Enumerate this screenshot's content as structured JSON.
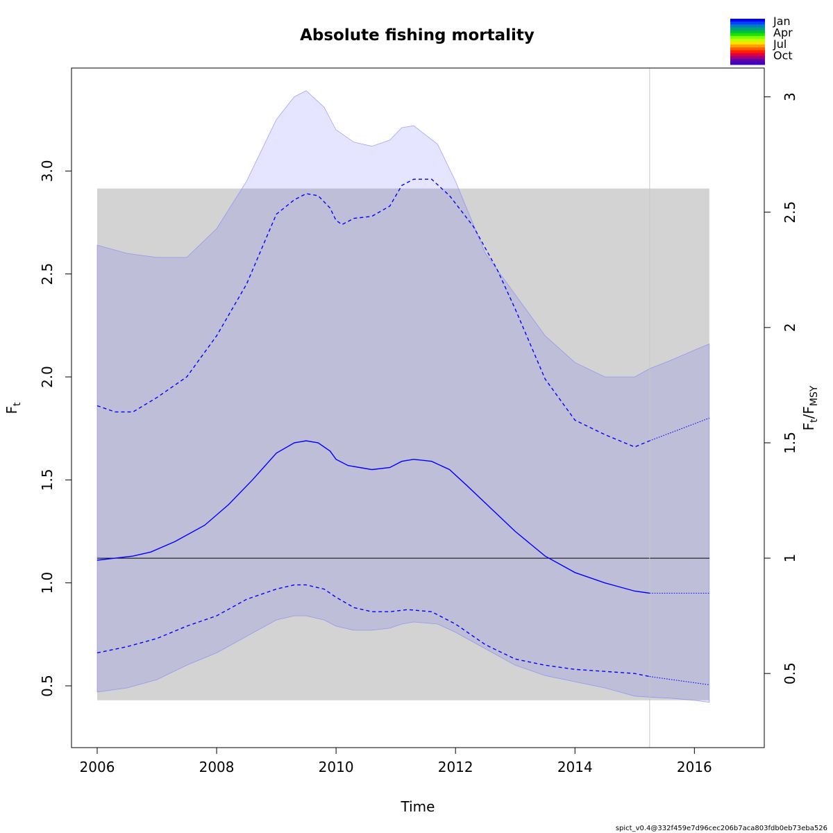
{
  "chart_data": {
    "type": "line",
    "title": "Absolute fishing mortality",
    "xlabel": "Time",
    "ylabel": "F",
    "ylabel_sub": "t",
    "y2label": {
      "F": "F",
      "sub1": "t",
      "slash": "/F",
      "sub2": "MSY"
    },
    "xlim": [
      2005.57,
      2017.17
    ],
    "ylim": [
      0.2,
      3.5
    ],
    "y2_scale": 1.12,
    "x_ticks": [
      2006,
      2008,
      2010,
      2012,
      2014,
      2016
    ],
    "x_tick_labels": [
      "2006",
      "2008",
      "2010",
      "2012",
      "2014",
      "2016"
    ],
    "y_ticks": [
      0.5,
      1.0,
      1.5,
      2.0,
      2.5,
      3.0
    ],
    "y_tick_labels": [
      "0.5",
      "1.0",
      "1.5",
      "2.0",
      "2.5",
      "3.0"
    ],
    "y2_ticks": [
      0.5,
      1,
      1.5,
      2,
      2.5,
      3
    ],
    "y2_tick_labels": [
      "0.5",
      "1",
      "1.5",
      "2",
      "2.5",
      "3"
    ],
    "fmsy_band": {
      "x": [
        2006,
        2016.25
      ],
      "y": [
        0.43,
        2.915
      ],
      "color": "#d3d3d3"
    },
    "fmsy_value": 1.12,
    "last_obs_x": 2015.25,
    "outer_ci": {
      "color": "#d8d8f5",
      "x": [
        2006,
        2006.5,
        2007,
        2007.5,
        2008,
        2008.5,
        2009,
        2009.3,
        2009.5,
        2009.8,
        2010,
        2010.3,
        2010.6,
        2010.9,
        2011.1,
        2011.3,
        2011.7,
        2012,
        2012.5,
        2013,
        2013.5,
        2014,
        2014.5,
        2015,
        2015.25,
        2015.6,
        2016,
        2016.25
      ],
      "upper": [
        2.64,
        2.6,
        2.58,
        2.58,
        2.72,
        2.95,
        3.25,
        3.36,
        3.39,
        3.31,
        3.2,
        3.14,
        3.12,
        3.15,
        3.21,
        3.22,
        3.13,
        2.95,
        2.6,
        2.4,
        2.2,
        2.07,
        2.0,
        2.0,
        2.04,
        2.08,
        2.13,
        2.16
      ],
      "lower": [
        0.47,
        0.49,
        0.53,
        0.6,
        0.66,
        0.74,
        0.82,
        0.84,
        0.84,
        0.82,
        0.79,
        0.77,
        0.77,
        0.78,
        0.8,
        0.81,
        0.8,
        0.76,
        0.68,
        0.6,
        0.55,
        0.52,
        0.49,
        0.45,
        0.445,
        0.44,
        0.43,
        0.42
      ]
    },
    "series": [
      {
        "name": "",
        "color": "#0000ff",
        "dash": "solid",
        "x": [
          2006,
          2006.3,
          2006.6,
          2006.9,
          2007.3,
          2007.8,
          2008.2,
          2008.6,
          2009,
          2009.3,
          2009.5,
          2009.7,
          2009.9,
          2010,
          2010.2,
          2010.6,
          2010.9,
          2011.1,
          2011.3,
          2011.6,
          2011.9,
          2012.2,
          2012.6,
          2013,
          2013.5,
          2014,
          2014.5,
          2015,
          2015.25
        ],
        "y": [
          1.11,
          1.12,
          1.13,
          1.15,
          1.2,
          1.28,
          1.38,
          1.5,
          1.63,
          1.68,
          1.69,
          1.68,
          1.64,
          1.6,
          1.57,
          1.55,
          1.56,
          1.59,
          1.6,
          1.59,
          1.55,
          1.47,
          1.36,
          1.25,
          1.13,
          1.05,
          1.0,
          0.96,
          0.95
        ]
      },
      {
        "name": "",
        "color": "#0000ff",
        "dash": "dotted",
        "x": [
          2015.25,
          2016.25
        ],
        "y": [
          0.95,
          0.95
        ]
      },
      {
        "name": "",
        "color": "#0000ff",
        "dash": "dashed",
        "x": [
          2006,
          2006.3,
          2006.6,
          2007,
          2007.5,
          2008,
          2008.5,
          2009,
          2009.3,
          2009.5,
          2009.7,
          2009.9,
          2010,
          2010.1,
          2010.3,
          2010.6,
          2010.9,
          2011.1,
          2011.3,
          2011.6,
          2011.9,
          2012.3,
          2012.7,
          2013,
          2013.5,
          2014,
          2014.5,
          2015,
          2015.25
        ],
        "y": [
          1.86,
          1.83,
          1.83,
          1.9,
          2.0,
          2.2,
          2.45,
          2.79,
          2.86,
          2.89,
          2.88,
          2.82,
          2.76,
          2.74,
          2.77,
          2.78,
          2.83,
          2.93,
          2.96,
          2.96,
          2.88,
          2.73,
          2.52,
          2.33,
          1.99,
          1.79,
          1.72,
          1.66,
          1.69
        ]
      },
      {
        "name": "",
        "color": "#0000ff",
        "dash": "dotted",
        "x": [
          2015.25,
          2016.25
        ],
        "y": [
          1.69,
          1.8
        ]
      },
      {
        "name": "",
        "color": "#0000ff",
        "dash": "dashed",
        "x": [
          2006,
          2006.5,
          2007,
          2007.5,
          2008,
          2008.5,
          2009,
          2009.3,
          2009.5,
          2009.8,
          2010,
          2010.3,
          2010.6,
          2010.9,
          2011.2,
          2011.6,
          2012,
          2012.5,
          2013,
          2013.5,
          2014,
          2014.5,
          2015,
          2015.25
        ],
        "y": [
          0.66,
          0.69,
          0.73,
          0.79,
          0.84,
          0.92,
          0.97,
          0.99,
          0.99,
          0.97,
          0.93,
          0.88,
          0.86,
          0.86,
          0.87,
          0.86,
          0.8,
          0.7,
          0.63,
          0.6,
          0.58,
          0.57,
          0.56,
          0.545
        ]
      },
      {
        "name": "",
        "color": "#0000ff",
        "dash": "dotted",
        "x": [
          2015.25,
          2016.25
        ],
        "y": [
          0.545,
          0.505
        ]
      }
    ],
    "legend": {
      "position": "top-right",
      "labels": [
        "Jan",
        "Apr",
        "Jul",
        "Oct"
      ],
      "colors": [
        "#0000ff",
        "#0040ff",
        "#0080c0",
        "#00a080",
        "#00c040",
        "#20e000",
        "#80ff00",
        "#c0ff00",
        "#ffe000",
        "#ffa000",
        "#ff6000",
        "#ff2000",
        "#e00040",
        "#a00080",
        "#6000a0",
        "#4000c0"
      ]
    },
    "grid": false
  },
  "footer": {
    "version_text": "spict_v0.4@332f459e7d96cec206b7aca803fdb0eb73eba526"
  }
}
